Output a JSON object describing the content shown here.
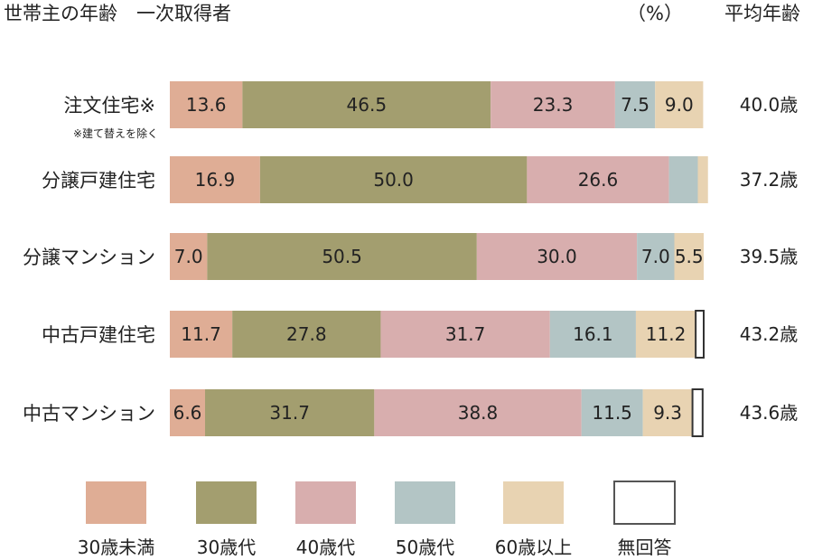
{
  "chart_data": {
    "type": "bar",
    "orientation": "horizontal",
    "stacked": true,
    "title": "世帯主の年齢　一次取得者",
    "unit_label": "（%）",
    "right_header": "平均年齢",
    "categories": [
      "注文住宅※",
      "分譲戸建住宅",
      "分譲マンション",
      "中古戸建住宅",
      "中古マンション"
    ],
    "category_notes": [
      "※建て替えを除く",
      "",
      "",
      "",
      ""
    ],
    "series": [
      {
        "name": "30歳未満",
        "color": "#dfad95",
        "values": [
          13.6,
          16.9,
          7.0,
          11.7,
          6.6
        ]
      },
      {
        "name": "30歳代",
        "color": "#a39e6f",
        "values": [
          46.5,
          50.0,
          50.5,
          27.8,
          31.7
        ]
      },
      {
        "name": "40歳代",
        "color": "#d8aeae",
        "values": [
          23.3,
          26.6,
          30.0,
          31.7,
          38.8
        ]
      },
      {
        "name": "50歳代",
        "color": "#b3c5c5",
        "values": [
          7.5,
          5.4,
          7.0,
          16.1,
          11.5
        ]
      },
      {
        "name": "60歳以上",
        "color": "#e8d3b2",
        "values": [
          9.0,
          1.9,
          5.5,
          11.2,
          9.3
        ]
      },
      {
        "name": "無回答",
        "color": "#ffffff",
        "values": [
          0.0,
          0.0,
          0.0,
          1.5,
          1.9
        ]
      }
    ],
    "labels": [
      [
        "13.6",
        "46.5",
        "23.3",
        "7.5",
        "9.0",
        ""
      ],
      [
        "16.9",
        "50.0",
        "26.6",
        "",
        "",
        ""
      ],
      [
        "7.0",
        "50.5",
        "30.0",
        "7.0",
        "5.5",
        ""
      ],
      [
        "11.7",
        "27.8",
        "31.7",
        "16.1",
        "11.2",
        ""
      ],
      [
        "6.6",
        "31.7",
        "38.8",
        "11.5",
        "9.3",
        ""
      ]
    ],
    "average_age": [
      "40.0歳",
      "37.2歳",
      "39.5歳",
      "43.2歳",
      "43.6歳"
    ],
    "xlim": [
      0,
      100
    ],
    "grid": false,
    "legend_position": "bottom"
  }
}
